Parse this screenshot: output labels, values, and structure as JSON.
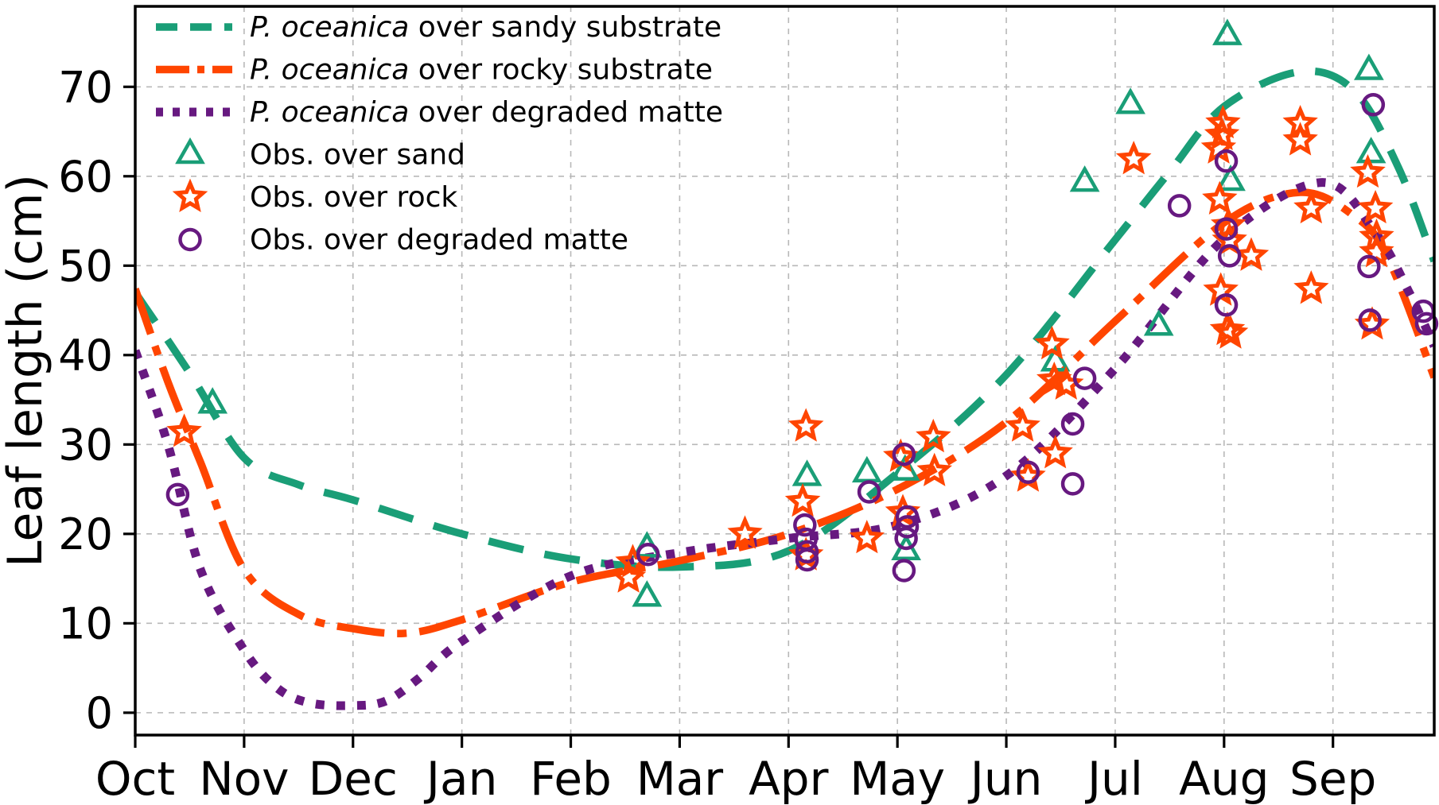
{
  "chart_data": {
    "type": "scatter",
    "title": "",
    "xlabel": "",
    "ylabel": "Leaf length (cm)",
    "x_tick_labels": [
      "Oct",
      "Nov",
      "Dec",
      "Jan",
      "Feb",
      "Mar",
      "Apr",
      "May",
      "Jun",
      "Jul",
      "Aug",
      "Sep"
    ],
    "y_ticks": [
      0,
      10,
      20,
      30,
      40,
      50,
      60,
      70
    ],
    "xlim_months": [
      0,
      11.93
    ],
    "ylim": [
      -2.5,
      79
    ],
    "grid": "dashed gray, both axes",
    "legend_position": "upper left, no frame",
    "colors": {
      "sand": "#1a9e77",
      "rock": "#ff4500",
      "matte": "#671980",
      "grid": "#b8b8b8",
      "axis": "#000000"
    },
    "legend": [
      {
        "sample": "dashed",
        "color": "sand",
        "italic": "P. oceanica",
        "text": " over sandy substrate"
      },
      {
        "sample": "dashdot",
        "color": "rock",
        "italic": "P. oceanica",
        "text": " over rocky substrate"
      },
      {
        "sample": "dotted",
        "color": "matte",
        "italic": "P. oceanica",
        "text": " over degraded matte"
      },
      {
        "sample": "triangle",
        "color": "sand",
        "italic": "",
        "text": "Obs. over sand"
      },
      {
        "sample": "star",
        "color": "rock",
        "italic": "",
        "text": "Obs. over rock"
      },
      {
        "sample": "circle",
        "color": "matte",
        "italic": "",
        "text": "Obs. over degraded matte"
      }
    ],
    "curves": [
      {
        "name": "P. oceanica over sandy substrate",
        "style": "dashed",
        "color": "sand",
        "points": [
          [
            0,
            47
          ],
          [
            0.5,
            38
          ],
          [
            1,
            28.5
          ],
          [
            1.5,
            25.5
          ],
          [
            2,
            23.8
          ],
          [
            3,
            20
          ],
          [
            4,
            17.2
          ],
          [
            5,
            16.3
          ],
          [
            6,
            18.1
          ],
          [
            7,
            26.8
          ],
          [
            8,
            37.8
          ],
          [
            9,
            52.9
          ],
          [
            9.5,
            60.5
          ],
          [
            10,
            67.8
          ],
          [
            10.7,
            71.7
          ],
          [
            11.2,
            69.5
          ],
          [
            11.6,
            61
          ],
          [
            11.93,
            50.5
          ]
        ]
      },
      {
        "name": "P. oceanica over rocky substrate",
        "style": "dashdot",
        "color": "rock",
        "points": [
          [
            0,
            47.4
          ],
          [
            0.3,
            37
          ],
          [
            0.6,
            28
          ],
          [
            1,
            16
          ],
          [
            1.5,
            11
          ],
          [
            2,
            9.4
          ],
          [
            2.5,
            8.9
          ],
          [
            3,
            10.4
          ],
          [
            4,
            14.6
          ],
          [
            5,
            17
          ],
          [
            6,
            20
          ],
          [
            7,
            25
          ],
          [
            8,
            32.5
          ],
          [
            9,
            43.8
          ],
          [
            10,
            54.8
          ],
          [
            10.7,
            58.2
          ],
          [
            11.2,
            55.5
          ],
          [
            11.5,
            51
          ],
          [
            11.93,
            37.5
          ]
        ]
      },
      {
        "name": "P. oceanica over degraded matte",
        "style": "dotted",
        "color": "matte",
        "points": [
          [
            0,
            40.5
          ],
          [
            0.3,
            30
          ],
          [
            0.6,
            16
          ],
          [
            1,
            7
          ],
          [
            1.3,
            2.8
          ],
          [
            1.6,
            1.1
          ],
          [
            2,
            0.8
          ],
          [
            2.3,
            1.3
          ],
          [
            2.6,
            3.8
          ],
          [
            3,
            8
          ],
          [
            4,
            15.3
          ],
          [
            5,
            17.9
          ],
          [
            6,
            19.5
          ],
          [
            7,
            21
          ],
          [
            8,
            26.5
          ],
          [
            9,
            38.5
          ],
          [
            10,
            53
          ],
          [
            10.9,
            59.3
          ],
          [
            11.4,
            53.5
          ],
          [
            11.7,
            47
          ],
          [
            11.93,
            41
          ]
        ]
      }
    ],
    "observations": [
      {
        "name": "Obs. over sand",
        "marker": "triangle",
        "color": "sand",
        "points": [
          [
            0.71,
            34.5
          ],
          [
            4.7,
            18.4
          ],
          [
            4.7,
            12.9
          ],
          [
            6.17,
            26.4
          ],
          [
            6.72,
            26.8
          ],
          [
            7.07,
            27.0
          ],
          [
            7.08,
            18.1
          ],
          [
            8.45,
            39.2
          ],
          [
            8.72,
            59.3
          ],
          [
            9.14,
            68.0
          ],
          [
            9.4,
            43.2
          ],
          [
            10.03,
            75.7
          ],
          [
            10.06,
            59.4
          ],
          [
            11.33,
            71.8
          ],
          [
            11.35,
            62.5
          ]
        ]
      },
      {
        "name": "Obs. over rock",
        "marker": "star",
        "color": "rock",
        "points": [
          [
            0.45,
            31.4
          ],
          [
            4.53,
            15.1
          ],
          [
            4.57,
            16.8
          ],
          [
            5.6,
            20.0
          ],
          [
            6.13,
            23.6
          ],
          [
            6.16,
            32.0
          ],
          [
            6.16,
            17.6
          ],
          [
            6.72,
            19.5
          ],
          [
            7.03,
            28.6
          ],
          [
            7.05,
            22.4
          ],
          [
            7.33,
            30.8
          ],
          [
            7.34,
            27.0
          ],
          [
            8.15,
            32.0
          ],
          [
            8.2,
            26.4
          ],
          [
            8.42,
            41.2
          ],
          [
            8.44,
            37.2
          ],
          [
            8.55,
            36.7
          ],
          [
            8.45,
            29.0
          ],
          [
            9.17,
            61.9
          ],
          [
            9.97,
            47.2
          ],
          [
            9.99,
            65.9
          ],
          [
            9.98,
            64.6
          ],
          [
            9.95,
            63.1
          ],
          [
            9.96,
            57.4
          ],
          [
            10.04,
            54.5
          ],
          [
            10.05,
            52.8
          ],
          [
            10.03,
            42.8
          ],
          [
            10.06,
            42.4
          ],
          [
            10.25,
            51.1
          ],
          [
            10.7,
            65.9
          ],
          [
            10.7,
            64.0
          ],
          [
            10.8,
            56.4
          ],
          [
            10.8,
            47.4
          ],
          [
            11.32,
            60.4
          ],
          [
            11.39,
            56.4
          ],
          [
            11.4,
            53.2
          ],
          [
            11.4,
            51.5
          ],
          [
            11.36,
            43.4
          ]
        ]
      },
      {
        "name": "Obs. over degraded matte",
        "marker": "circle",
        "color": "matte",
        "points": [
          [
            0.39,
            24.4
          ],
          [
            4.71,
            17.7
          ],
          [
            6.15,
            21.0
          ],
          [
            6.16,
            19.4
          ],
          [
            6.17,
            18.0
          ],
          [
            6.17,
            17.1
          ],
          [
            6.74,
            24.7
          ],
          [
            7.06,
            28.9
          ],
          [
            7.09,
            21.9
          ],
          [
            7.09,
            20.8
          ],
          [
            7.08,
            19.5
          ],
          [
            7.06,
            15.9
          ],
          [
            8.2,
            26.9
          ],
          [
            8.61,
            32.3
          ],
          [
            8.61,
            25.6
          ],
          [
            8.72,
            37.4
          ],
          [
            9.59,
            56.7
          ],
          [
            10.02,
            61.7
          ],
          [
            10.02,
            54.1
          ],
          [
            10.05,
            51.1
          ],
          [
            10.02,
            45.6
          ],
          [
            11.37,
            68.0
          ],
          [
            11.33,
            49.9
          ],
          [
            11.34,
            43.9
          ],
          [
            11.83,
            44.9
          ],
          [
            11.86,
            43.5
          ]
        ]
      }
    ]
  }
}
